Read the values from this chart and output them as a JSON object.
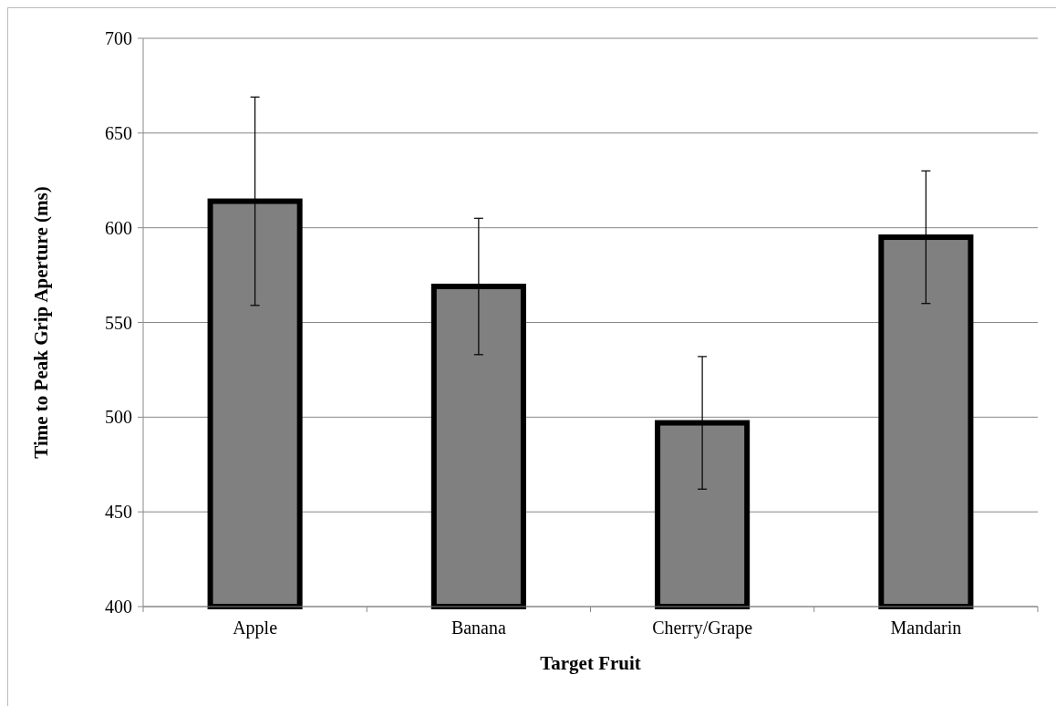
{
  "chart_data": {
    "type": "bar",
    "xlabel": "Target Fruit",
    "ylabel": "Time to Peak Grip Aperture (ms)",
    "categories": [
      "Apple",
      "Banana",
      "Cherry/Grape",
      "Mandarin"
    ],
    "values": [
      614,
      569,
      497,
      595
    ],
    "errors": [
      [
        559,
        669
      ],
      [
        533,
        605
      ],
      [
        462,
        532
      ],
      [
        560,
        630
      ]
    ],
    "color": "#808080",
    "ylim": [
      400,
      700
    ],
    "yticks": [
      400,
      450,
      500,
      550,
      600,
      650,
      700
    ],
    "grid": "y"
  }
}
